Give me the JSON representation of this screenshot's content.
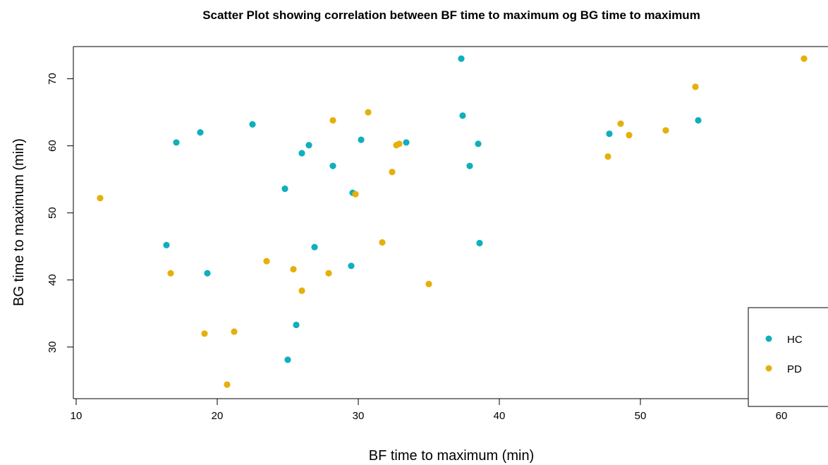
{
  "chart_data": {
    "type": "scatter",
    "title": "Scatter Plot showing correlation between BF time to maximum og BG time to maximum",
    "xlabel": "BF time to maximum (min)",
    "ylabel": "BG time to maximum (min)",
    "xlim": [
      9.8,
      63.3
    ],
    "ylim": [
      22.3,
      74.8
    ],
    "x_ticks": [
      10,
      20,
      30,
      40,
      50,
      60
    ],
    "y_ticks": [
      30,
      40,
      50,
      60,
      70
    ],
    "grid": false,
    "legend_position": "bottom-right",
    "series": [
      {
        "name": "HC",
        "color": "#10AFBD",
        "points": [
          [
            16.4,
            45.2
          ],
          [
            17.1,
            60.5
          ],
          [
            18.8,
            62.0
          ],
          [
            19.3,
            41.0
          ],
          [
            22.5,
            63.2
          ],
          [
            24.8,
            53.6
          ],
          [
            25.0,
            28.1
          ],
          [
            25.6,
            33.3
          ],
          [
            26.0,
            58.9
          ],
          [
            26.5,
            60.1
          ],
          [
            26.9,
            44.9
          ],
          [
            28.2,
            57.0
          ],
          [
            29.5,
            42.1
          ],
          [
            29.6,
            53.0
          ],
          [
            30.2,
            60.9
          ],
          [
            33.4,
            60.5
          ],
          [
            37.3,
            73.0
          ],
          [
            37.4,
            64.5
          ],
          [
            37.9,
            57.0
          ],
          [
            38.5,
            60.3
          ],
          [
            38.6,
            45.5
          ],
          [
            47.8,
            61.8
          ],
          [
            54.1,
            63.8
          ]
        ]
      },
      {
        "name": "PD",
        "color": "#E5B00A",
        "points": [
          [
            11.7,
            52.2
          ],
          [
            16.7,
            41.0
          ],
          [
            19.1,
            32.0
          ],
          [
            20.7,
            24.4
          ],
          [
            21.2,
            32.3
          ],
          [
            23.5,
            42.8
          ],
          [
            25.4,
            41.6
          ],
          [
            26.0,
            38.4
          ],
          [
            27.9,
            41.0
          ],
          [
            28.2,
            63.8
          ],
          [
            29.8,
            52.8
          ],
          [
            30.7,
            65.0
          ],
          [
            31.7,
            45.6
          ],
          [
            32.4,
            56.1
          ],
          [
            32.7,
            60.1
          ],
          [
            32.9,
            60.3
          ],
          [
            35.0,
            39.4
          ],
          [
            47.7,
            58.4
          ],
          [
            48.6,
            63.3
          ],
          [
            49.2,
            61.6
          ],
          [
            51.8,
            62.3
          ],
          [
            53.9,
            68.8
          ],
          [
            61.6,
            73.0
          ]
        ]
      }
    ]
  }
}
